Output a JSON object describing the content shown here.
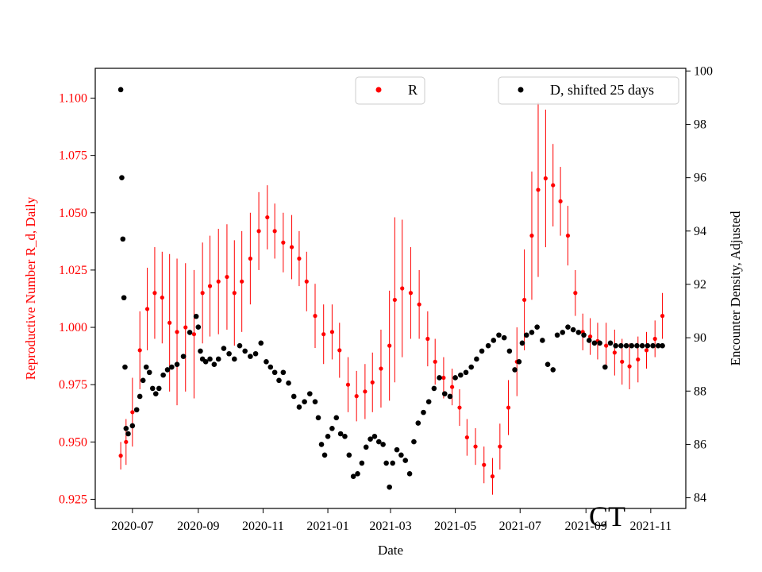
{
  "chart_data": {
    "type": "scatter",
    "state_label": "CT",
    "xlabel": "Date",
    "ylabel_left": "Reproductive Number R_d, Daily",
    "ylabel_right": "Encounter Density, Adjusted",
    "x_ticks": [
      "2020-07",
      "2020-09",
      "2020-11",
      "2021-01",
      "2021-03",
      "2021-05",
      "2021-07",
      "2021-09",
      "2021-11"
    ],
    "x_range": [
      "2020-05-27",
      "2021-12-04"
    ],
    "y_left_ticks": [
      "0.925",
      "0.950",
      "0.975",
      "1.000",
      "1.025",
      "1.050",
      "1.075",
      "1.100"
    ],
    "y_left_range": [
      0.921,
      1.113
    ],
    "y_right_ticks": [
      "84",
      "86",
      "88",
      "90",
      "92",
      "94",
      "96",
      "98",
      "100"
    ],
    "y_right_range": [
      83.6,
      100.1
    ],
    "legend": {
      "r_label": "R",
      "d_label": "D, shifted 25 days",
      "r_position": "top-center",
      "d_position": "top-right"
    },
    "colors": {
      "r": "#ff0000",
      "d": "#000000"
    },
    "series": [
      {
        "name": "R",
        "axis": "left",
        "error_bars": true,
        "x": [
          "2020-06-20",
          "2020-06-25",
          "2020-07-01",
          "2020-07-08",
          "2020-07-15",
          "2020-07-22",
          "2020-07-29",
          "2020-08-05",
          "2020-08-12",
          "2020-08-20",
          "2020-08-28",
          "2020-09-05",
          "2020-09-12",
          "2020-09-20",
          "2020-09-28",
          "2020-10-05",
          "2020-10-12",
          "2020-10-20",
          "2020-10-28",
          "2020-11-05",
          "2020-11-12",
          "2020-11-20",
          "2020-11-28",
          "2020-12-05",
          "2020-12-12",
          "2020-12-20",
          "2020-12-28",
          "2021-01-05",
          "2021-01-12",
          "2021-01-20",
          "2021-01-28",
          "2021-02-05",
          "2021-02-12",
          "2021-02-20",
          "2021-02-28",
          "2021-03-05",
          "2021-03-12",
          "2021-03-20",
          "2021-03-28",
          "2021-04-05",
          "2021-04-12",
          "2021-04-20",
          "2021-04-28",
          "2021-05-05",
          "2021-05-12",
          "2021-05-20",
          "2021-05-28",
          "2021-06-05",
          "2021-06-12",
          "2021-06-20",
          "2021-06-28",
          "2021-07-05",
          "2021-07-12",
          "2021-07-18",
          "2021-07-25",
          "2021-08-01",
          "2021-08-08",
          "2021-08-15",
          "2021-08-22",
          "2021-08-29",
          "2021-09-05",
          "2021-09-12",
          "2021-09-20",
          "2021-09-28",
          "2021-10-05",
          "2021-10-12",
          "2021-10-20",
          "2021-10-28",
          "2021-11-05",
          "2021-11-12"
        ],
        "values": [
          0.944,
          0.95,
          0.963,
          0.99,
          1.008,
          1.015,
          1.013,
          1.002,
          0.998,
          1.0,
          0.997,
          1.015,
          1.018,
          1.02,
          1.022,
          1.015,
          1.02,
          1.03,
          1.042,
          1.048,
          1.042,
          1.037,
          1.035,
          1.03,
          1.02,
          1.005,
          0.997,
          0.998,
          0.99,
          0.975,
          0.97,
          0.972,
          0.976,
          0.982,
          0.992,
          1.012,
          1.017,
          1.015,
          1.01,
          0.995,
          0.985,
          0.978,
          0.974,
          0.965,
          0.952,
          0.948,
          0.94,
          0.935,
          0.948,
          0.965,
          0.985,
          1.012,
          1.04,
          1.06,
          1.065,
          1.062,
          1.055,
          1.04,
          1.015,
          0.998,
          0.996,
          0.994,
          0.992,
          0.989,
          0.985,
          0.983,
          0.986,
          0.99,
          0.995,
          1.005
        ],
        "errors": [
          0.006,
          0.01,
          0.015,
          0.017,
          0.018,
          0.02,
          0.02,
          0.03,
          0.032,
          0.028,
          0.028,
          0.022,
          0.022,
          0.023,
          0.023,
          0.023,
          0.022,
          0.02,
          0.017,
          0.014,
          0.012,
          0.013,
          0.014,
          0.012,
          0.013,
          0.014,
          0.013,
          0.012,
          0.012,
          0.012,
          0.011,
          0.012,
          0.013,
          0.017,
          0.024,
          0.036,
          0.03,
          0.02,
          0.015,
          0.012,
          0.01,
          0.009,
          0.008,
          0.008,
          0.008,
          0.008,
          0.008,
          0.008,
          0.01,
          0.012,
          0.015,
          0.022,
          0.028,
          0.038,
          0.03,
          0.018,
          0.015,
          0.013,
          0.01,
          0.008,
          0.008,
          0.008,
          0.01,
          0.01,
          0.01,
          0.01,
          0.01,
          0.008,
          0.008,
          0.01
        ]
      },
      {
        "name": "D, shifted 25 days",
        "axis": "right",
        "x": [
          "2020-06-20",
          "2020-06-21",
          "2020-06-22",
          "2020-06-23",
          "2020-06-24",
          "2020-06-25",
          "2020-06-27",
          "2020-07-01",
          "2020-07-05",
          "2020-07-08",
          "2020-07-11",
          "2020-07-14",
          "2020-07-17",
          "2020-07-20",
          "2020-07-23",
          "2020-07-26",
          "2020-07-30",
          "2020-08-03",
          "2020-08-07",
          "2020-08-12",
          "2020-08-18",
          "2020-08-24",
          "2020-08-30",
          "2020-09-01",
          "2020-09-03",
          "2020-09-05",
          "2020-09-08",
          "2020-09-12",
          "2020-09-16",
          "2020-09-20",
          "2020-09-25",
          "2020-09-30",
          "2020-10-05",
          "2020-10-10",
          "2020-10-15",
          "2020-10-20",
          "2020-10-25",
          "2020-10-30",
          "2020-11-04",
          "2020-11-08",
          "2020-11-12",
          "2020-11-16",
          "2020-11-20",
          "2020-11-25",
          "2020-11-30",
          "2020-12-05",
          "2020-12-10",
          "2020-12-15",
          "2020-12-20",
          "2020-12-23",
          "2020-12-26",
          "2020-12-29",
          "2021-01-01",
          "2021-01-05",
          "2021-01-09",
          "2021-01-13",
          "2021-01-17",
          "2021-01-21",
          "2021-01-25",
          "2021-01-29",
          "2021-02-02",
          "2021-02-06",
          "2021-02-10",
          "2021-02-14",
          "2021-02-18",
          "2021-02-22",
          "2021-02-25",
          "2021-02-28",
          "2021-03-03",
          "2021-03-07",
          "2021-03-11",
          "2021-03-15",
          "2021-03-19",
          "2021-03-23",
          "2021-03-27",
          "2021-04-01",
          "2021-04-06",
          "2021-04-11",
          "2021-04-16",
          "2021-04-21",
          "2021-04-26",
          "2021-05-01",
          "2021-05-06",
          "2021-05-11",
          "2021-05-16",
          "2021-05-21",
          "2021-05-26",
          "2021-06-01",
          "2021-06-06",
          "2021-06-11",
          "2021-06-16",
          "2021-06-21",
          "2021-06-26",
          "2021-06-30",
          "2021-07-03",
          "2021-07-07",
          "2021-07-12",
          "2021-07-17",
          "2021-07-22",
          "2021-07-27",
          "2021-08-01",
          "2021-08-05",
          "2021-08-10",
          "2021-08-15",
          "2021-08-20",
          "2021-08-25",
          "2021-08-30",
          "2021-09-04",
          "2021-09-09",
          "2021-09-14",
          "2021-09-19",
          "2021-09-24",
          "2021-09-29",
          "2021-10-04",
          "2021-10-09",
          "2021-10-14",
          "2021-10-19",
          "2021-10-24",
          "2021-10-29",
          "2021-11-03",
          "2021-11-08",
          "2021-11-12"
        ],
        "values": [
          99.3,
          96.0,
          93.7,
          91.5,
          88.9,
          86.6,
          86.4,
          86.7,
          87.3,
          87.8,
          88.4,
          88.9,
          88.7,
          88.1,
          87.9,
          88.1,
          88.6,
          88.8,
          88.9,
          89.0,
          89.3,
          90.2,
          90.8,
          90.4,
          89.5,
          89.2,
          89.1,
          89.2,
          89.0,
          89.2,
          89.6,
          89.4,
          89.2,
          89.7,
          89.5,
          89.3,
          89.4,
          89.8,
          89.1,
          88.9,
          88.7,
          88.4,
          88.7,
          88.3,
          87.8,
          87.4,
          87.6,
          87.9,
          87.6,
          87.0,
          86.0,
          85.6,
          86.3,
          86.6,
          87.0,
          86.4,
          86.3,
          85.6,
          84.8,
          84.9,
          85.3,
          85.9,
          86.2,
          86.3,
          86.1,
          86.0,
          85.3,
          84.4,
          85.3,
          85.8,
          85.6,
          85.4,
          84.9,
          86.1,
          86.8,
          87.2,
          87.6,
          88.1,
          88.5,
          87.9,
          87.8,
          88.5,
          88.6,
          88.7,
          88.9,
          89.2,
          89.5,
          89.7,
          89.9,
          90.1,
          90.0,
          89.5,
          88.8,
          89.1,
          89.8,
          90.1,
          90.2,
          90.4,
          89.9,
          89.0,
          88.8,
          90.1,
          90.2,
          90.4,
          90.3,
          90.2,
          90.1,
          89.9,
          89.8,
          89.8,
          88.9,
          89.8,
          89.7,
          89.7,
          89.7,
          89.7,
          89.7,
          89.7,
          89.7,
          89.7,
          89.7,
          89.7
        ]
      }
    ]
  }
}
